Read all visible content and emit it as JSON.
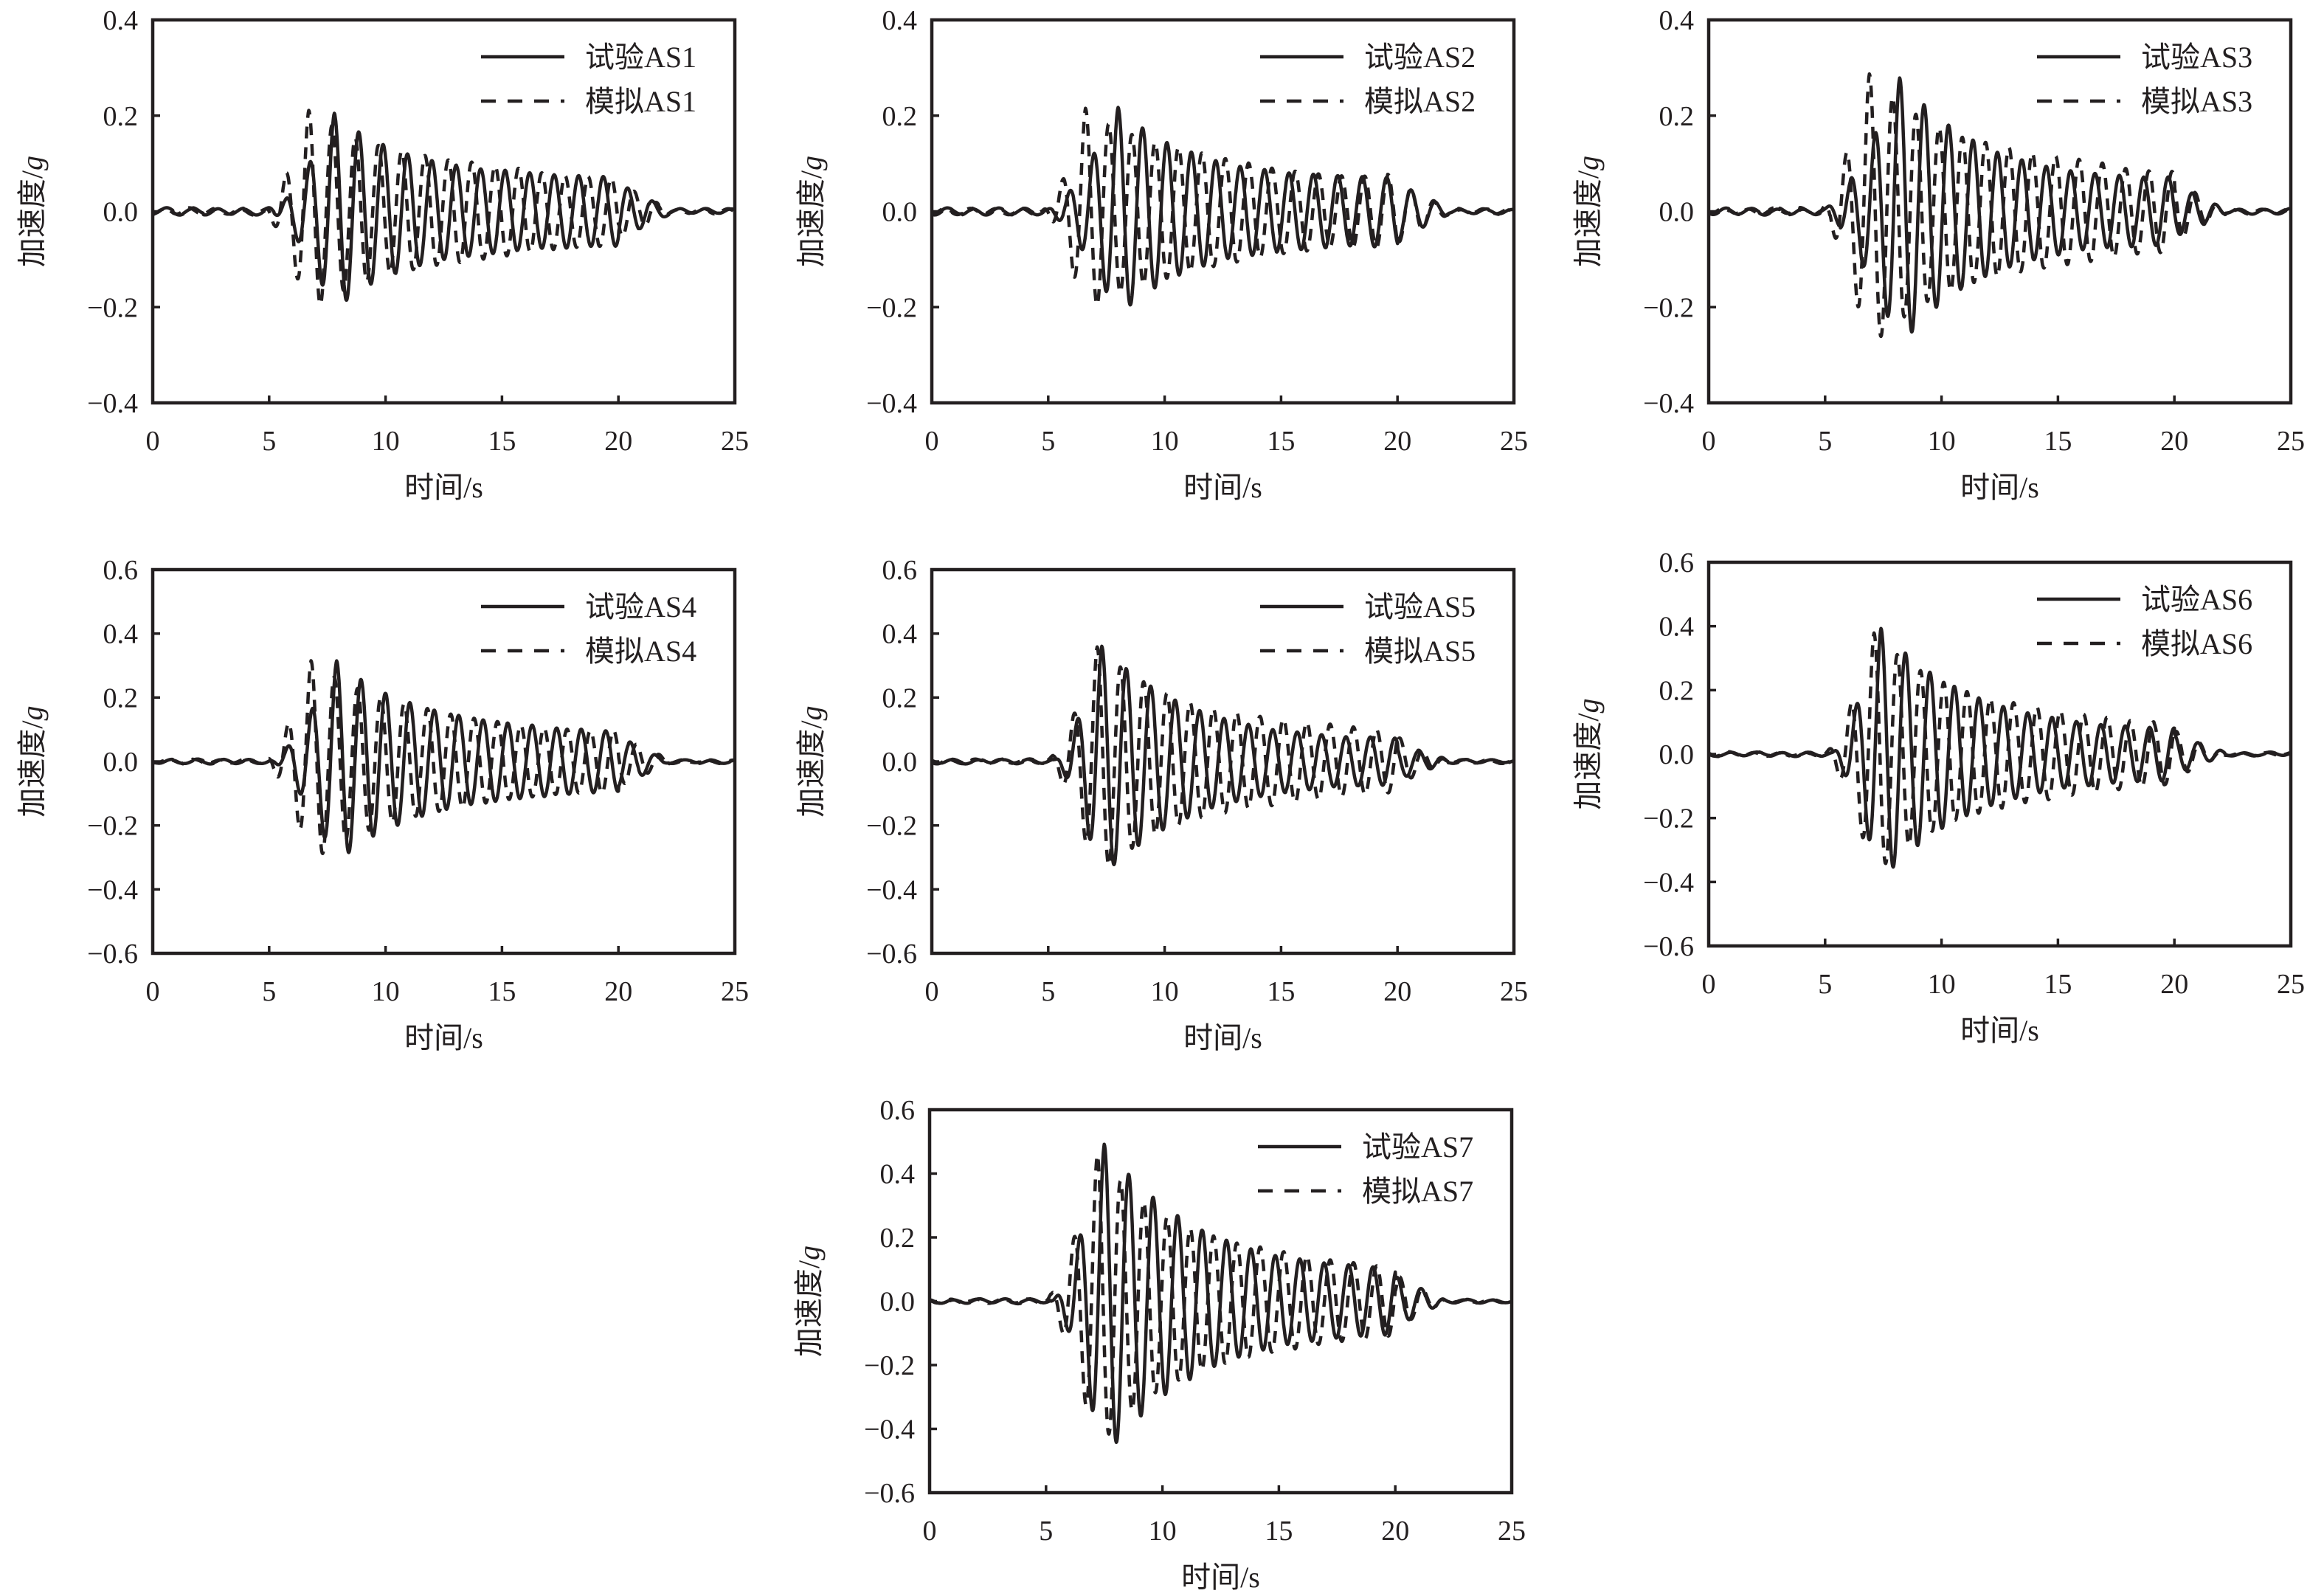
{
  "figure": {
    "panel_count": 7
  },
  "chart_data": [
    {
      "type": "line",
      "id": "AS1",
      "title": "",
      "xlabel": "时间/s",
      "ylabel_main": "加速度/",
      "ylabel_unit": "g",
      "xlim": [
        0,
        25
      ],
      "ylim": [
        -0.4,
        0.4
      ],
      "xticks": [
        "0",
        "5",
        "10",
        "15",
        "20",
        "25"
      ],
      "yticks": [
        "−0.4",
        "−0.2",
        "0.0",
        "0.2",
        "0.4"
      ],
      "grid": false,
      "legend_position": "top-right",
      "series": [
        {
          "name": "试验AS1",
          "style": "solid",
          "onset_s": 5.0,
          "end_s": 21.0,
          "period_s": 1.05,
          "peak_pos_g": 0.21,
          "peak_neg_g": -0.21,
          "peak_time_s": 7.8,
          "tail_amp_g": 0.06
        },
        {
          "name": "模拟AS1",
          "style": "dashed",
          "onset_s": 4.8,
          "end_s": 21.0,
          "period_s": 1.0,
          "peak_pos_g": 0.215,
          "peak_neg_g": -0.21,
          "peak_time_s": 6.7,
          "tail_amp_g": 0.07
        }
      ]
    },
    {
      "type": "line",
      "id": "AS2",
      "title": "",
      "xlabel": "时间/s",
      "ylabel_main": "加速度/",
      "ylabel_unit": "g",
      "xlim": [
        0,
        25
      ],
      "ylim": [
        -0.4,
        0.4
      ],
      "xticks": [
        "0",
        "5",
        "10",
        "15",
        "20",
        "25"
      ],
      "yticks": [
        "−0.4",
        "−0.2",
        "0.0",
        "0.2",
        "0.4"
      ],
      "grid": false,
      "legend_position": "top-right",
      "series": [
        {
          "name": "试验AS2",
          "style": "solid",
          "onset_s": 5.0,
          "end_s": 21.0,
          "period_s": 1.05,
          "peak_pos_g": 0.21,
          "peak_neg_g": -0.22,
          "peak_time_s": 8.0,
          "tail_amp_g": 0.06
        },
        {
          "name": "模拟AS2",
          "style": "dashed",
          "onset_s": 4.8,
          "end_s": 21.0,
          "period_s": 1.0,
          "peak_pos_g": 0.22,
          "peak_neg_g": -0.21,
          "peak_time_s": 6.6,
          "tail_amp_g": 0.07
        }
      ]
    },
    {
      "type": "line",
      "id": "AS3",
      "title": "",
      "xlabel": "时间/s",
      "ylabel_main": "加速度/",
      "ylabel_unit": "g",
      "xlim": [
        0,
        25
      ],
      "ylim": [
        -0.4,
        0.4
      ],
      "xticks": [
        "0",
        "5",
        "10",
        "15",
        "20",
        "25"
      ],
      "yticks": [
        "−0.4",
        "−0.2",
        "0.0",
        "0.2",
        "0.4"
      ],
      "grid": false,
      "legend_position": "top-right",
      "series": [
        {
          "name": "试验AS3",
          "style": "solid",
          "onset_s": 5.0,
          "end_s": 21.0,
          "period_s": 1.05,
          "peak_pos_g": 0.28,
          "peak_neg_g": -0.26,
          "peak_time_s": 8.2,
          "tail_amp_g": 0.06
        },
        {
          "name": "模拟AS3",
          "style": "dashed",
          "onset_s": 4.8,
          "end_s": 21.0,
          "period_s": 1.0,
          "peak_pos_g": 0.28,
          "peak_neg_g": -0.29,
          "peak_time_s": 6.9,
          "tail_amp_g": 0.08
        }
      ]
    },
    {
      "type": "line",
      "id": "AS4",
      "title": "",
      "xlabel": "时间/s",
      "ylabel_main": "加速度/",
      "ylabel_unit": "g",
      "xlim": [
        0,
        25
      ],
      "ylim": [
        -0.6,
        0.6
      ],
      "xticks": [
        "0",
        "5",
        "10",
        "15",
        "20",
        "25"
      ],
      "yticks": [
        "−0.6",
        "−0.4",
        "−0.2",
        "0.0",
        "0.2",
        "0.4",
        "0.6"
      ],
      "grid": false,
      "legend_position": "top-right",
      "series": [
        {
          "name": "试验AS4",
          "style": "solid",
          "onset_s": 5.0,
          "end_s": 21.0,
          "period_s": 1.05,
          "peak_pos_g": 0.31,
          "peak_neg_g": -0.32,
          "peak_time_s": 7.9,
          "tail_amp_g": 0.08
        },
        {
          "name": "模拟AS4",
          "style": "dashed",
          "onset_s": 4.8,
          "end_s": 21.0,
          "period_s": 1.0,
          "peak_pos_g": 0.3,
          "peak_neg_g": -0.32,
          "peak_time_s": 6.8,
          "tail_amp_g": 0.09
        }
      ]
    },
    {
      "type": "line",
      "id": "AS5",
      "title": "",
      "xlabel": "时间/s",
      "ylabel_main": "加速度/",
      "ylabel_unit": "g",
      "xlim": [
        0,
        25
      ],
      "ylim": [
        -0.6,
        0.6
      ],
      "xticks": [
        "0",
        "5",
        "10",
        "15",
        "20",
        "25"
      ],
      "yticks": [
        "−0.6",
        "−0.4",
        "−0.2",
        "0.0",
        "0.2",
        "0.4",
        "0.6"
      ],
      "grid": false,
      "legend_position": "top-right",
      "series": [
        {
          "name": "试验AS5",
          "style": "solid",
          "onset_s": 5.3,
          "end_s": 21.0,
          "period_s": 1.05,
          "peak_pos_g": 0.36,
          "peak_neg_g": -0.36,
          "peak_time_s": 7.3,
          "tail_amp_g": 0.06
        },
        {
          "name": "模拟AS5",
          "style": "dashed",
          "onset_s": 5.0,
          "end_s": 21.0,
          "period_s": 1.0,
          "peak_pos_g": 0.36,
          "peak_neg_g": -0.34,
          "peak_time_s": 7.1,
          "tail_amp_g": 0.09
        }
      ]
    },
    {
      "type": "line",
      "id": "AS6",
      "title": "",
      "xlabel": "时间/s",
      "ylabel_main": "加速度/",
      "ylabel_unit": "g",
      "xlim": [
        0,
        25
      ],
      "ylim": [
        -0.6,
        0.6
      ],
      "xticks": [
        "0",
        "5",
        "10",
        "15",
        "20",
        "25"
      ],
      "yticks": [
        "−0.6",
        "−0.4",
        "−0.2",
        "0.0",
        "0.2",
        "0.4",
        "0.6"
      ],
      "grid": false,
      "legend_position": "top-right",
      "series": [
        {
          "name": "试验AS6",
          "style": "solid",
          "onset_s": 5.3,
          "end_s": 21.0,
          "period_s": 1.05,
          "peak_pos_g": 0.39,
          "peak_neg_g": -0.37,
          "peak_time_s": 7.4,
          "tail_amp_g": 0.07
        },
        {
          "name": "模拟AS6",
          "style": "dashed",
          "onset_s": 5.0,
          "end_s": 21.0,
          "period_s": 1.0,
          "peak_pos_g": 0.37,
          "peak_neg_g": -0.38,
          "peak_time_s": 7.1,
          "tail_amp_g": 0.09
        }
      ]
    },
    {
      "type": "line",
      "id": "AS7",
      "title": "",
      "xlabel": "时间/s",
      "ylabel_main": "加速度/",
      "ylabel_unit": "g",
      "xlim": [
        0,
        25
      ],
      "ylim": [
        -0.6,
        0.6
      ],
      "xticks": [
        "0",
        "5",
        "10",
        "15",
        "20",
        "25"
      ],
      "yticks": [
        "−0.6",
        "−0.4",
        "−0.2",
        "0.0",
        "0.2",
        "0.4",
        "0.6"
      ],
      "grid": false,
      "legend_position": "top-right",
      "series": [
        {
          "name": "试验AS7",
          "style": "solid",
          "onset_s": 5.3,
          "end_s": 21.0,
          "period_s": 1.05,
          "peak_pos_g": 0.49,
          "peak_neg_g": -0.46,
          "peak_time_s": 7.5,
          "tail_amp_g": 0.09
        },
        {
          "name": "模拟AS7",
          "style": "dashed",
          "onset_s": 5.0,
          "end_s": 21.0,
          "period_s": 1.0,
          "peak_pos_g": 0.45,
          "peak_neg_g": -0.46,
          "peak_time_s": 7.2,
          "tail_amp_g": 0.1
        }
      ]
    }
  ]
}
